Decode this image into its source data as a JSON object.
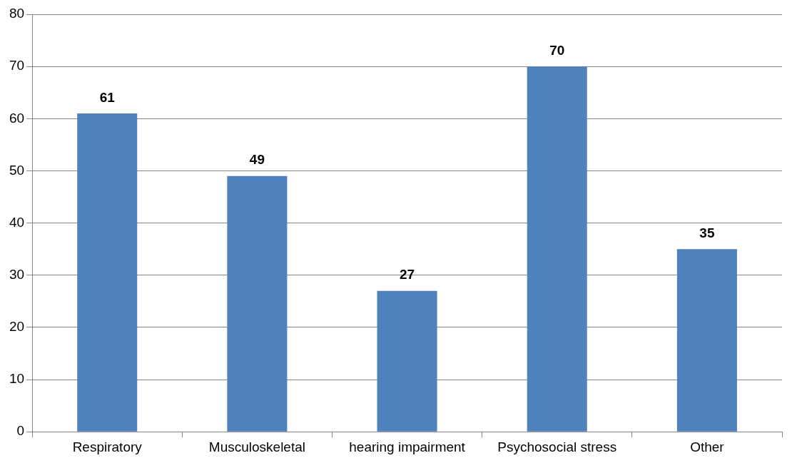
{
  "chart_data": {
    "type": "bar",
    "categories": [
      "Respiratory",
      "Musculoskeletal",
      "hearing impairment",
      "Psychosocial stress",
      "Other"
    ],
    "values": [
      61,
      49,
      27,
      70,
      35
    ],
    "color": "#4f81bd",
    "ylim": [
      0,
      80
    ],
    "yticks": [
      0,
      10,
      20,
      30,
      40,
      50,
      60,
      70,
      80
    ],
    "grid": "y",
    "data_labels": true
  }
}
